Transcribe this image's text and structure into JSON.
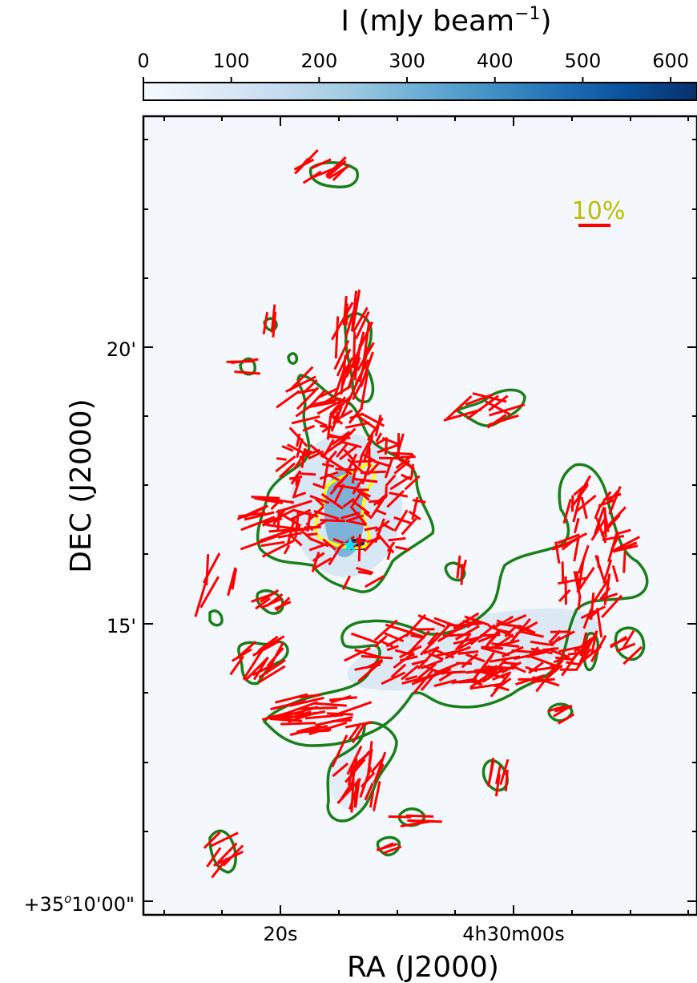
{
  "chart_data": {
    "type": "heatmap",
    "colorbar": {
      "label": "I (mJy beam",
      "label_superscript": "−1",
      "label_close": ")",
      "ticks": [
        "0",
        "100",
        "200",
        "300",
        "400",
        "500",
        "600"
      ],
      "tick_values": [
        0,
        100,
        200,
        300,
        400,
        500,
        600
      ],
      "range": [
        0,
        630
      ],
      "colormap": [
        "#f7fbff",
        "#deebf7",
        "#c6dbef",
        "#9ecae1",
        "#6baed6",
        "#4292c6",
        "#2171b5",
        "#08519c",
        "#08306b"
      ]
    },
    "xlabel": "RA (J2000)",
    "ylabel": "DEC (J2000)",
    "xticks": [
      {
        "label": "20s",
        "ra_offset_s": 20
      },
      {
        "label": "4h30m00s",
        "ra_offset_s": 0
      }
    ],
    "yticks": [
      {
        "label": "+35°10'00\"",
        "prefix": "+35",
        "sup": "o",
        "rest": "10'00\"",
        "dec_arcmin": 10
      },
      {
        "label": "15'",
        "dec_arcmin": 15
      },
      {
        "label": "20'",
        "dec_arcmin": 20
      }
    ],
    "scale_bar": {
      "label": "10%",
      "color": "#ff0000",
      "label_color": "#bcbc00"
    },
    "annotations": {
      "contour_outer_color": "#1a7f1a",
      "contour_inner_color": "#ffff00",
      "vector_color": "#ff0000",
      "source_marker": "star-icon",
      "source_marker_color": "#00e5ff"
    }
  }
}
